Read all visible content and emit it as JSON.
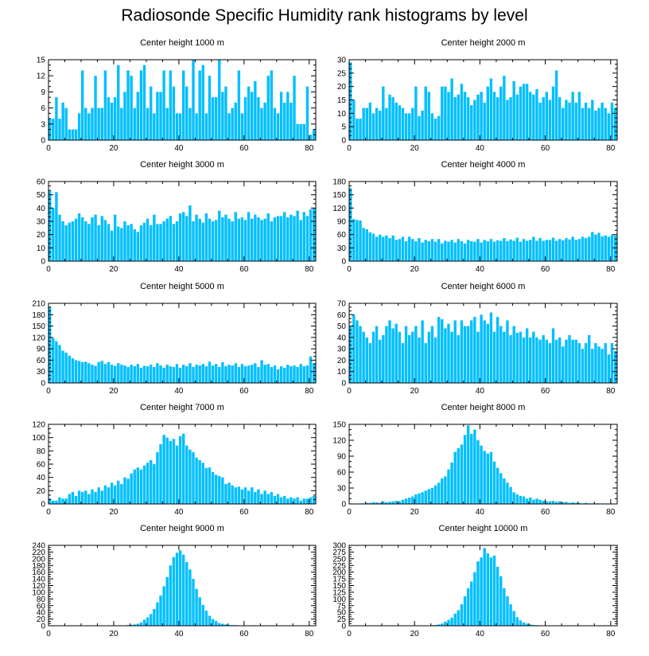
{
  "title": "Radiosonde Specific Humidity rank histograms by level",
  "bar_color": "#00bfff",
  "chart_data": [
    {
      "type": "bar",
      "title": "Center height 1000 m",
      "xlim": [
        0,
        82
      ],
      "ylim": [
        0,
        15
      ],
      "xticks": [
        0,
        20,
        40,
        60,
        80
      ],
      "yticks": [
        0,
        3,
        6,
        9,
        12,
        15
      ],
      "values": [
        4,
        4,
        8,
        4,
        7,
        6,
        2,
        2,
        2,
        5,
        13,
        6,
        5,
        6,
        12,
        6,
        6,
        13,
        8,
        7,
        8,
        14,
        6,
        9,
        13,
        12,
        6,
        9,
        13,
        14,
        6,
        10,
        5,
        9,
        9,
        13,
        6,
        13,
        10,
        5,
        5,
        13,
        10,
        6,
        15,
        5,
        13,
        14,
        5,
        12,
        8,
        8,
        15,
        9,
        10,
        5,
        6,
        7,
        13,
        5,
        8,
        10,
        9,
        11,
        8,
        6,
        7,
        12,
        13,
        6,
        5,
        9,
        7,
        9,
        7,
        12,
        3,
        3,
        3,
        10,
        1,
        2
      ]
    },
    {
      "type": "bar",
      "title": "Center height 2000 m",
      "xlim": [
        0,
        82
      ],
      "ylim": [
        0,
        30
      ],
      "xticks": [
        0,
        20,
        40,
        60,
        80
      ],
      "yticks": [
        0,
        5,
        10,
        15,
        20,
        25,
        30
      ],
      "values": [
        29,
        15,
        8,
        8,
        12,
        12,
        14,
        10,
        12,
        11,
        20,
        12,
        17,
        16,
        14,
        13,
        12,
        10,
        10,
        12,
        20,
        9,
        11,
        20,
        18,
        10,
        8,
        9,
        20,
        20,
        18,
        23,
        16,
        17,
        21,
        18,
        16,
        13,
        15,
        17,
        18,
        14,
        20,
        23,
        18,
        16,
        20,
        24,
        15,
        16,
        22,
        17,
        20,
        21,
        21,
        18,
        17,
        19,
        14,
        16,
        18,
        15,
        20,
        26,
        16,
        12,
        15,
        14,
        18,
        14,
        18,
        12,
        14,
        12,
        15,
        11,
        12,
        14,
        12,
        10,
        14,
        12
      ]
    },
    {
      "type": "bar",
      "title": "Center height 3000 m",
      "xlim": [
        0,
        82
      ],
      "ylim": [
        0,
        60
      ],
      "xticks": [
        0,
        20,
        40,
        60,
        80
      ],
      "yticks": [
        0,
        10,
        20,
        30,
        40,
        50,
        60
      ],
      "values": [
        53,
        40,
        52,
        35,
        30,
        27,
        29,
        30,
        32,
        36,
        33,
        30,
        28,
        33,
        35,
        27,
        34,
        31,
        28,
        23,
        35,
        26,
        25,
        30,
        27,
        28,
        24,
        22,
        27,
        29,
        32,
        27,
        35,
        28,
        28,
        30,
        32,
        34,
        28,
        30,
        36,
        37,
        34,
        42,
        30,
        35,
        32,
        29,
        36,
        32,
        30,
        31,
        38,
        33,
        35,
        32,
        30,
        37,
        32,
        33,
        31,
        37,
        32,
        35,
        33,
        31,
        32,
        36,
        30,
        33,
        34,
        34,
        37,
        33,
        35,
        34,
        38,
        31,
        37,
        34,
        39,
        40
      ]
    },
    {
      "type": "bar",
      "title": "Center height 4000 m",
      "xlim": [
        0,
        82
      ],
      "ylim": [
        0,
        180
      ],
      "xticks": [
        0,
        20,
        40,
        60,
        80
      ],
      "yticks": [
        0,
        30,
        60,
        90,
        120,
        150,
        180
      ],
      "values": [
        165,
        95,
        93,
        92,
        75,
        72,
        65,
        62,
        55,
        60,
        55,
        58,
        52,
        58,
        48,
        50,
        55,
        45,
        55,
        50,
        45,
        52,
        42,
        48,
        45,
        50,
        44,
        50,
        40,
        46,
        44,
        48,
        42,
        50,
        45,
        40,
        48,
        45,
        44,
        50,
        42,
        48,
        45,
        50,
        44,
        47,
        46,
        52,
        45,
        49,
        46,
        53,
        44,
        50,
        46,
        48,
        55,
        46,
        52,
        46,
        48,
        48,
        53,
        46,
        50,
        47,
        52,
        49,
        55,
        48,
        50,
        55,
        52,
        55,
        66,
        60,
        64,
        56,
        58,
        55,
        60,
        58
      ]
    },
    {
      "type": "bar",
      "title": "Center height 5000 m",
      "xlim": [
        0,
        82
      ],
      "ylim": [
        0,
        210
      ],
      "xticks": [
        0,
        20,
        40,
        60,
        80
      ],
      "yticks": [
        0,
        30,
        60,
        90,
        120,
        150,
        180,
        210
      ],
      "values": [
        200,
        118,
        110,
        100,
        85,
        80,
        72,
        65,
        60,
        58,
        55,
        56,
        52,
        48,
        45,
        55,
        58,
        50,
        55,
        48,
        45,
        52,
        48,
        46,
        42,
        48,
        44,
        50,
        40,
        45,
        44,
        48,
        42,
        52,
        46,
        40,
        48,
        44,
        42,
        50,
        40,
        48,
        44,
        52,
        42,
        48,
        46,
        50,
        44,
        56,
        46,
        50,
        42,
        55,
        44,
        48,
        46,
        52,
        42,
        50,
        44,
        46,
        48,
        52,
        42,
        60,
        48,
        50,
        42,
        46,
        36,
        44,
        40,
        48,
        44,
        46,
        42,
        50,
        44,
        46,
        70,
        52
      ]
    },
    {
      "type": "bar",
      "title": "Center height 6000 m",
      "xlim": [
        0,
        82
      ],
      "ylim": [
        0,
        70
      ],
      "xticks": [
        0,
        20,
        40,
        60,
        80
      ],
      "yticks": [
        0,
        10,
        20,
        30,
        40,
        50,
        60,
        70
      ],
      "values": [
        50,
        60,
        55,
        50,
        45,
        40,
        35,
        45,
        50,
        38,
        42,
        50,
        55,
        48,
        52,
        45,
        35,
        50,
        42,
        45,
        50,
        40,
        55,
        35,
        45,
        50,
        40,
        58,
        56,
        48,
        52,
        45,
        55,
        42,
        55,
        50,
        50,
        55,
        58,
        45,
        60,
        55,
        52,
        62,
        45,
        58,
        50,
        45,
        55,
        42,
        50,
        44,
        45,
        40,
        48,
        40,
        45,
        40,
        38,
        42,
        38,
        35,
        48,
        38,
        40,
        32,
        38,
        42,
        38,
        38,
        35,
        30,
        35,
        42,
        30,
        35,
        32,
        30,
        35,
        25,
        35,
        28
      ]
    },
    {
      "type": "bar",
      "title": "Center height 7000 m",
      "xlim": [
        0,
        82
      ],
      "ylim": [
        0,
        120
      ],
      "xticks": [
        0,
        20,
        40,
        60,
        80
      ],
      "yticks": [
        0,
        20,
        40,
        60,
        80,
        100,
        120
      ],
      "values": [
        8,
        5,
        5,
        10,
        8,
        8,
        15,
        18,
        12,
        20,
        18,
        20,
        15,
        22,
        18,
        25,
        20,
        28,
        25,
        32,
        28,
        35,
        30,
        40,
        38,
        46,
        52,
        55,
        52,
        58,
        62,
        66,
        60,
        78,
        90,
        104,
        100,
        95,
        98,
        88,
        102,
        106,
        88,
        82,
        78,
        70,
        66,
        62,
        54,
        55,
        48,
        44,
        42,
        40,
        30,
        32,
        28,
        25,
        26,
        22,
        25,
        20,
        25,
        18,
        22,
        15,
        20,
        15,
        18,
        12,
        15,
        10,
        12,
        8,
        10,
        8,
        10,
        5,
        8,
        8,
        10,
        12
      ]
    },
    {
      "type": "bar",
      "title": "Center height 8000 m",
      "xlim": [
        0,
        82
      ],
      "ylim": [
        0,
        150
      ],
      "xticks": [
        0,
        20,
        40,
        60,
        80
      ],
      "yticks": [
        0,
        30,
        60,
        90,
        120,
        150
      ],
      "values": [
        1,
        0,
        0,
        1,
        1,
        2,
        2,
        3,
        3,
        2,
        5,
        3,
        4,
        5,
        6,
        5,
        8,
        10,
        12,
        14,
        18,
        20,
        22,
        25,
        28,
        30,
        35,
        40,
        48,
        52,
        65,
        78,
        98,
        105,
        112,
        130,
        148,
        132,
        140,
        120,
        110,
        100,
        95,
        98,
        80,
        68,
        58,
        48,
        40,
        32,
        22,
        18,
        15,
        14,
        10,
        12,
        8,
        10,
        8,
        6,
        5,
        5,
        6,
        4,
        5,
        3,
        4,
        2,
        3,
        2,
        2,
        1,
        2,
        1,
        1,
        1,
        1,
        0,
        1,
        0,
        1,
        0
      ]
    },
    {
      "type": "bar",
      "title": "Center height 9000 m",
      "xlim": [
        0,
        82
      ],
      "ylim": [
        0,
        240
      ],
      "xticks": [
        0,
        20,
        40,
        60,
        80
      ],
      "yticks": [
        0,
        20,
        40,
        60,
        80,
        100,
        120,
        140,
        160,
        180,
        200,
        220,
        240
      ],
      "values": [
        0,
        0,
        0,
        0,
        0,
        0,
        0,
        0,
        0,
        0,
        0,
        0,
        0,
        0,
        0,
        0,
        0,
        0,
        0,
        0,
        0,
        0,
        1,
        1,
        2,
        3,
        4,
        6,
        10,
        18,
        25,
        35,
        50,
        70,
        90,
        118,
        145,
        180,
        205,
        218,
        225,
        212,
        190,
        168,
        140,
        110,
        85,
        62,
        45,
        30,
        20,
        14,
        8,
        6,
        4,
        3,
        2,
        2,
        1,
        1,
        0,
        0,
        0,
        0,
        0,
        0,
        0,
        0,
        0,
        0,
        0,
        0,
        0,
        0,
        0,
        0,
        0,
        0,
        0,
        0,
        0,
        0
      ]
    },
    {
      "type": "bar",
      "title": "Center height 10000 m",
      "xlim": [
        0,
        82
      ],
      "ylim": [
        0,
        300
      ],
      "xticks": [
        0,
        20,
        40,
        60,
        80
      ],
      "yticks": [
        0,
        25,
        50,
        75,
        100,
        125,
        150,
        175,
        200,
        225,
        250,
        275,
        300
      ],
      "values": [
        0,
        0,
        0,
        0,
        0,
        0,
        0,
        0,
        0,
        0,
        0,
        0,
        0,
        0,
        0,
        0,
        0,
        0,
        0,
        0,
        0,
        0,
        0,
        0,
        1,
        2,
        3,
        5,
        8,
        15,
        22,
        30,
        45,
        58,
        80,
        110,
        140,
        165,
        200,
        240,
        255,
        290,
        270,
        255,
        262,
        220,
        185,
        140,
        110,
        80,
        55,
        32,
        20,
        12,
        8,
        5,
        3,
        2,
        1,
        1,
        0,
        0,
        0,
        0,
        0,
        0,
        0,
        0,
        0,
        0,
        0,
        0,
        0,
        0,
        0,
        0,
        0,
        0,
        0,
        0,
        0,
        0
      ]
    }
  ]
}
